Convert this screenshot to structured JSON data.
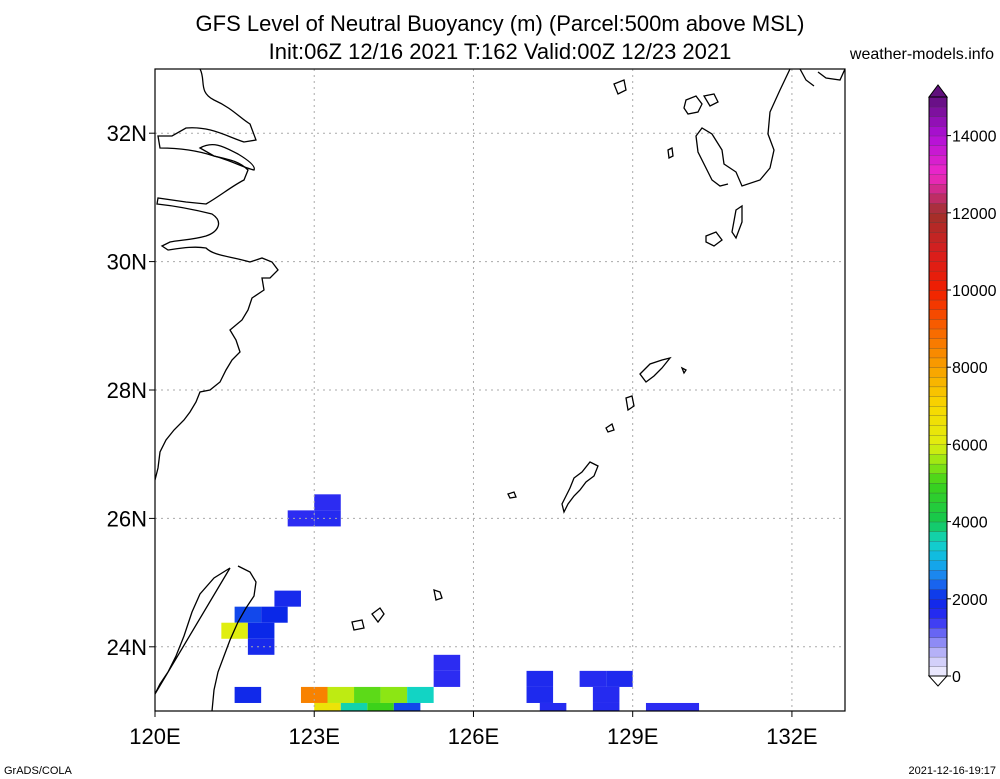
{
  "chart_data": {
    "type": "heatmap",
    "title_line1": "GFS Level of Neutral Buoyancy (m) (Parcel:500m above MSL)",
    "title_line2": "Init:06Z 12/16 2021 T:162 Valid:00Z 12/23 2021",
    "source_label": "weather-models.info",
    "footer_left": "GrADS/COLA",
    "footer_right": "2021-12-16-19:17",
    "x_range": [
      120,
      133
    ],
    "y_range": [
      23,
      33
    ],
    "x_ticks": [
      {
        "value": 120,
        "label": "120E"
      },
      {
        "value": 123,
        "label": "123E"
      },
      {
        "value": 126,
        "label": "126E"
      },
      {
        "value": 129,
        "label": "129E"
      },
      {
        "value": 132,
        "label": "132E"
      }
    ],
    "y_ticks": [
      {
        "value": 24,
        "label": "24N"
      },
      {
        "value": 26,
        "label": "26N"
      },
      {
        "value": 28,
        "label": "28N"
      },
      {
        "value": 30,
        "label": "30N"
      },
      {
        "value": 32,
        "label": "32N"
      }
    ],
    "colorbar": {
      "min": 0,
      "max": 15000,
      "tick_labels": [
        {
          "value": 0,
          "label": "0"
        },
        {
          "value": 2000,
          "label": "2000"
        },
        {
          "value": 4000,
          "label": "4000"
        },
        {
          "value": 6000,
          "label": "6000"
        },
        {
          "value": 8000,
          "label": "8000"
        },
        {
          "value": 10000,
          "label": "10000"
        },
        {
          "value": 12000,
          "label": "12000"
        },
        {
          "value": 14000,
          "label": "14000"
        }
      ],
      "stops": [
        {
          "value": 0,
          "color": "#f4f2ff"
        },
        {
          "value": 500,
          "color": "#c8c4f8"
        },
        {
          "value": 1000,
          "color": "#7a78f4"
        },
        {
          "value": 1500,
          "color": "#2c2cf2"
        },
        {
          "value": 2000,
          "color": "#0a28e8"
        },
        {
          "value": 2500,
          "color": "#1e78f0"
        },
        {
          "value": 3000,
          "color": "#10b4e8"
        },
        {
          "value": 3500,
          "color": "#12d4c4"
        },
        {
          "value": 4000,
          "color": "#14c850"
        },
        {
          "value": 5000,
          "color": "#3cd21a"
        },
        {
          "value": 5500,
          "color": "#8ce614"
        },
        {
          "value": 6000,
          "color": "#e0ee10"
        },
        {
          "value": 7000,
          "color": "#f8d800"
        },
        {
          "value": 8000,
          "color": "#f8a000"
        },
        {
          "value": 9000,
          "color": "#f86400"
        },
        {
          "value": 10000,
          "color": "#f01e00"
        },
        {
          "value": 11000,
          "color": "#d81e1e"
        },
        {
          "value": 12000,
          "color": "#a0302a"
        },
        {
          "value": 13000,
          "color": "#f028c8"
        },
        {
          "value": 14000,
          "color": "#b010d8"
        },
        {
          "value": 15000,
          "color": "#60107c"
        }
      ]
    },
    "cells": [
      {
        "lon": 122.75,
        "lat": 26.0,
        "value": 1500
      },
      {
        "lon": 123.25,
        "lat": 26.0,
        "value": 1600
      },
      {
        "lon": 123.25,
        "lat": 26.25,
        "value": 1500
      },
      {
        "lon": 122.5,
        "lat": 24.75,
        "value": 1800
      },
      {
        "lon": 121.75,
        "lat": 24.5,
        "value": 2200
      },
      {
        "lon": 122.25,
        "lat": 24.5,
        "value": 2000
      },
      {
        "lon": 121.5,
        "lat": 24.25,
        "value": 6000
      },
      {
        "lon": 122.0,
        "lat": 24.25,
        "value": 2000
      },
      {
        "lon": 122.0,
        "lat": 24.0,
        "value": 1800
      },
      {
        "lon": 121.75,
        "lat": 23.25,
        "value": 1900
      },
      {
        "lon": 125.5,
        "lat": 23.75,
        "value": 1500
      },
      {
        "lon": 125.5,
        "lat": 23.5,
        "value": 1500
      },
      {
        "lon": 123.0,
        "lat": 23.25,
        "value": 8500
      },
      {
        "lon": 123.5,
        "lat": 23.25,
        "value": 5800
      },
      {
        "lon": 124.0,
        "lat": 23.25,
        "value": 5200
      },
      {
        "lon": 124.5,
        "lat": 23.25,
        "value": 5500
      },
      {
        "lon": 125.0,
        "lat": 23.25,
        "value": 3500
      },
      {
        "lon": 123.25,
        "lat": 23.0,
        "value": 6500
      },
      {
        "lon": 123.75,
        "lat": 23.0,
        "value": 3600
      },
      {
        "lon": 124.25,
        "lat": 23.0,
        "value": 5000
      },
      {
        "lon": 124.75,
        "lat": 23.0,
        "value": 2200
      },
      {
        "lon": 127.25,
        "lat": 23.5,
        "value": 1700
      },
      {
        "lon": 127.25,
        "lat": 23.25,
        "value": 1700
      },
      {
        "lon": 127.5,
        "lat": 23.0,
        "value": 1600
      },
      {
        "lon": 128.25,
        "lat": 23.5,
        "value": 1600
      },
      {
        "lon": 128.75,
        "lat": 23.5,
        "value": 1700
      },
      {
        "lon": 128.5,
        "lat": 23.25,
        "value": 1600
      },
      {
        "lon": 128.5,
        "lat": 23.0,
        "value": 1600
      },
      {
        "lon": 129.5,
        "lat": 23.0,
        "value": 1500
      },
      {
        "lon": 130.0,
        "lat": 23.0,
        "value": 1500
      }
    ]
  }
}
